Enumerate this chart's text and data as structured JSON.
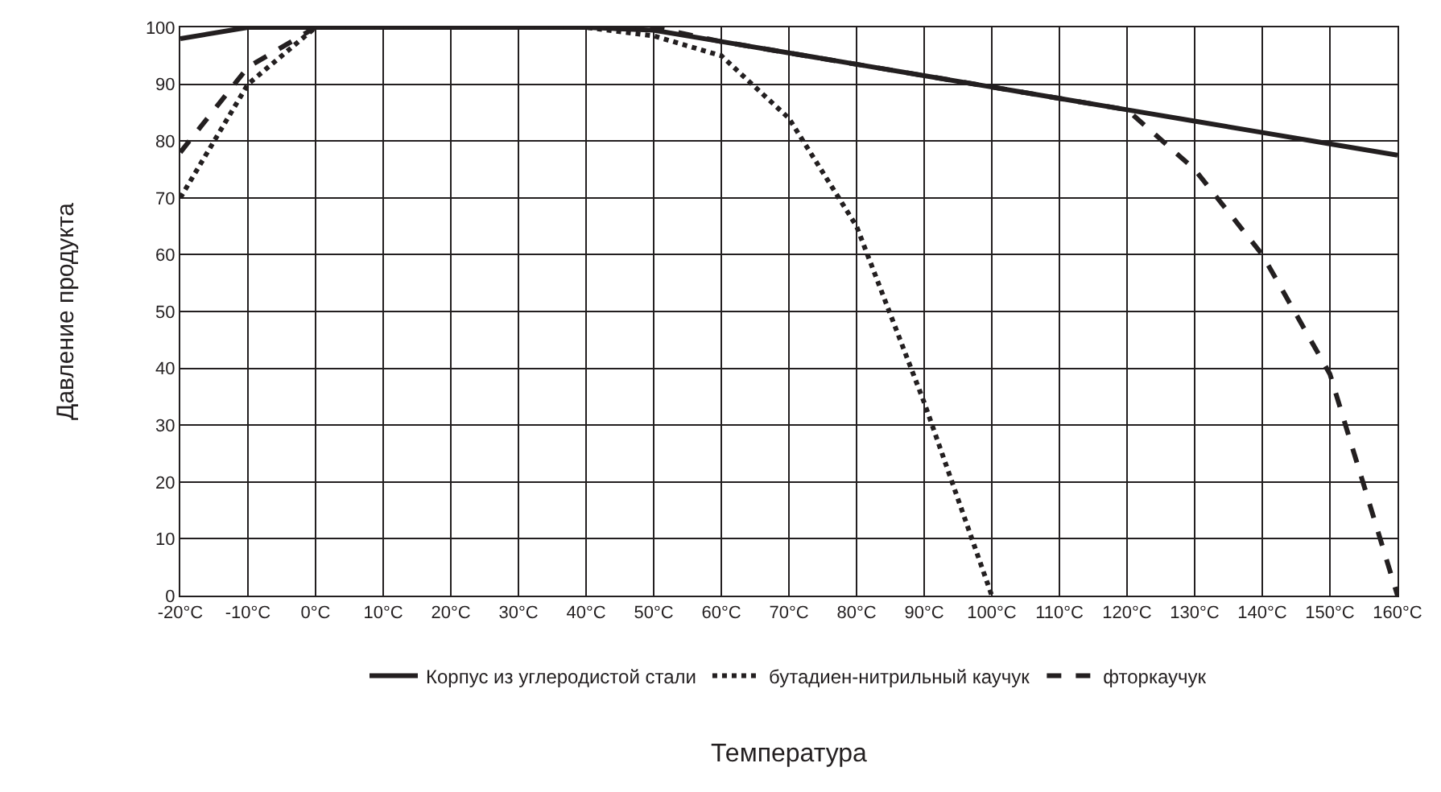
{
  "chart_data": {
    "type": "line",
    "xlabel": "Температура",
    "ylabel": "Давление продукта",
    "x": [
      -20,
      -10,
      0,
      10,
      20,
      30,
      40,
      50,
      60,
      70,
      80,
      90,
      100,
      110,
      120,
      130,
      140,
      150,
      160
    ],
    "series": [
      {
        "name": "Корпус из углеродистой стали",
        "color": "#231f20",
        "line_style": "solid",
        "values": [
          98,
          100,
          100,
          100,
          100,
          100,
          100,
          99.5,
          97.5,
          95.5,
          93.5,
          91.5,
          89.5,
          87.5,
          85.5,
          83.5,
          81.5,
          79.5,
          77.5
        ]
      },
      {
        "name": "бутадиен-нитрильный каучук",
        "color": "#231f20",
        "line_style": "dotted",
        "values": [
          70,
          90,
          100,
          100,
          100,
          100,
          100,
          98.5,
          95,
          84,
          65,
          34,
          0,
          null,
          null,
          null,
          null,
          null,
          null
        ]
      },
      {
        "name": "фторкаучук",
        "color": "#231f20",
        "line_style": "dashed",
        "values": [
          78,
          93,
          100,
          100,
          100,
          100,
          100,
          100,
          97.5,
          95.5,
          93.5,
          91.5,
          89.5,
          87.5,
          85.5,
          75,
          60,
          39,
          0
        ]
      }
    ],
    "xlim": [
      -20,
      160
    ],
    "xticks": [
      {
        "value": -20,
        "label": "-20°C"
      },
      {
        "value": -10,
        "label": "-10°C"
      },
      {
        "value": 0,
        "label": "0°C"
      },
      {
        "value": 10,
        "label": "10°C"
      },
      {
        "value": 20,
        "label": "20°C"
      },
      {
        "value": 30,
        "label": "30°C"
      },
      {
        "value": 40,
        "label": "40°C"
      },
      {
        "value": 50,
        "label": "50°C"
      },
      {
        "value": 60,
        "label": "60°C"
      },
      {
        "value": 70,
        "label": "70°C"
      },
      {
        "value": 80,
        "label": "80°C"
      },
      {
        "value": 90,
        "label": "90°C"
      },
      {
        "value": 100,
        "label": "100°C"
      },
      {
        "value": 110,
        "label": "110°C"
      },
      {
        "value": 120,
        "label": "120°C"
      },
      {
        "value": 130,
        "label": "130°C"
      },
      {
        "value": 140,
        "label": "140°C"
      },
      {
        "value": 150,
        "label": "150°C"
      },
      {
        "value": 160,
        "label": "160°C"
      }
    ],
    "ylim": [
      0,
      100
    ],
    "yticks": [
      0,
      10,
      20,
      30,
      40,
      50,
      60,
      70,
      80,
      90,
      100
    ],
    "grid": true,
    "legend": "bottom",
    "marker": "none"
  }
}
